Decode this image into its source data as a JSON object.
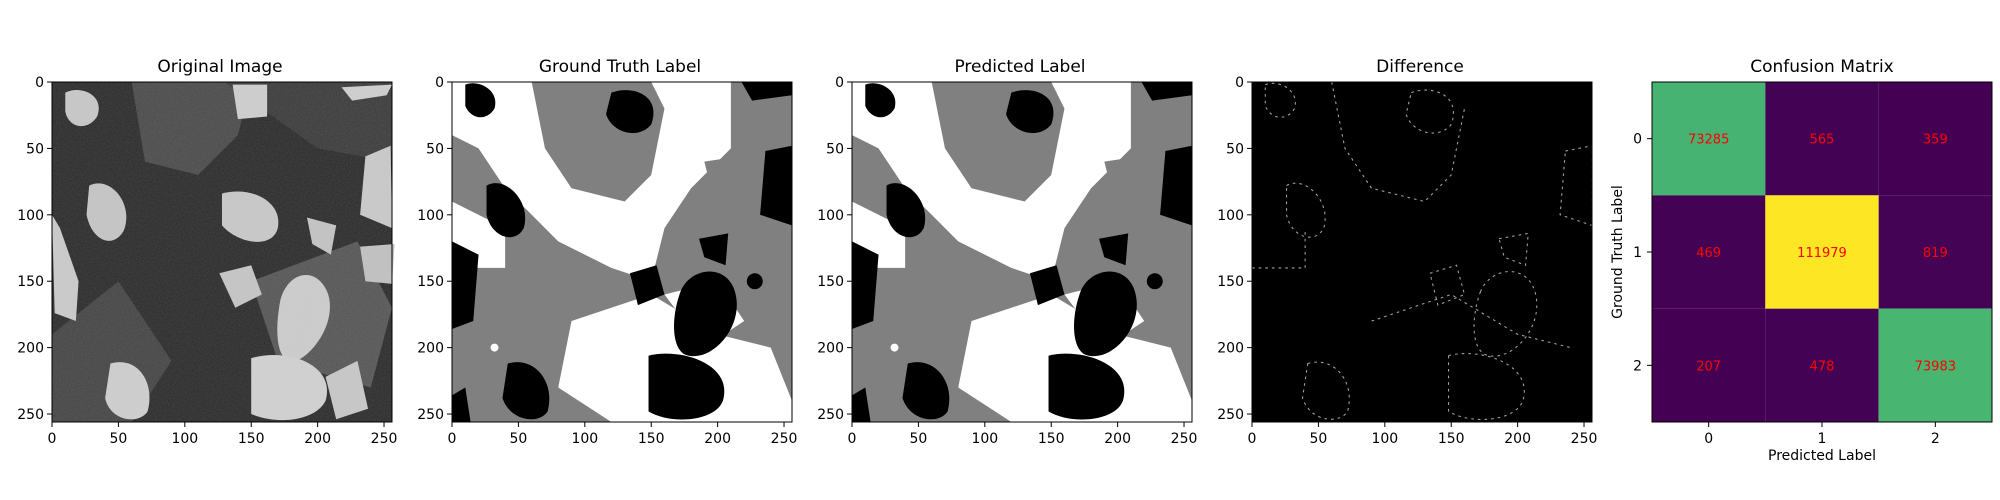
{
  "figure": {
    "panels": [
      {
        "key": "original",
        "title": "Original Image"
      },
      {
        "key": "gt",
        "title": "Ground Truth Label"
      },
      {
        "key": "pred",
        "title": "Predicted Label"
      },
      {
        "key": "diff",
        "title": "Difference"
      }
    ],
    "confusion_title": "Confusion Matrix"
  },
  "image_axes": {
    "xticks": [
      "0",
      "50",
      "100",
      "150",
      "200",
      "250"
    ],
    "yticks": [
      "0",
      "50",
      "100",
      "150",
      "200",
      "250"
    ],
    "xlim": [
      0,
      256
    ],
    "ylim": [
      256,
      0
    ]
  },
  "colors": {
    "viridis_low": "#440154",
    "viridis_mid": "#35b779",
    "viridis_high": "#fde725",
    "annotation": "#ff0000"
  },
  "chart_data": {
    "type": "heatmap",
    "title": "Confusion Matrix",
    "xlabel": "Predicted Label",
    "ylabel": "Ground Truth Label",
    "x_categories": [
      "0",
      "1",
      "2"
    ],
    "y_categories": [
      "0",
      "1",
      "2"
    ],
    "values": [
      [
        73285,
        565,
        359
      ],
      [
        469,
        111979,
        819
      ],
      [
        207,
        478,
        73983
      ]
    ],
    "cell_labels": [
      [
        "73285",
        "565",
        "359"
      ],
      [
        "469",
        "111979",
        "819"
      ],
      [
        "207",
        "478",
        "73983"
      ]
    ],
    "colormap": "viridis"
  }
}
